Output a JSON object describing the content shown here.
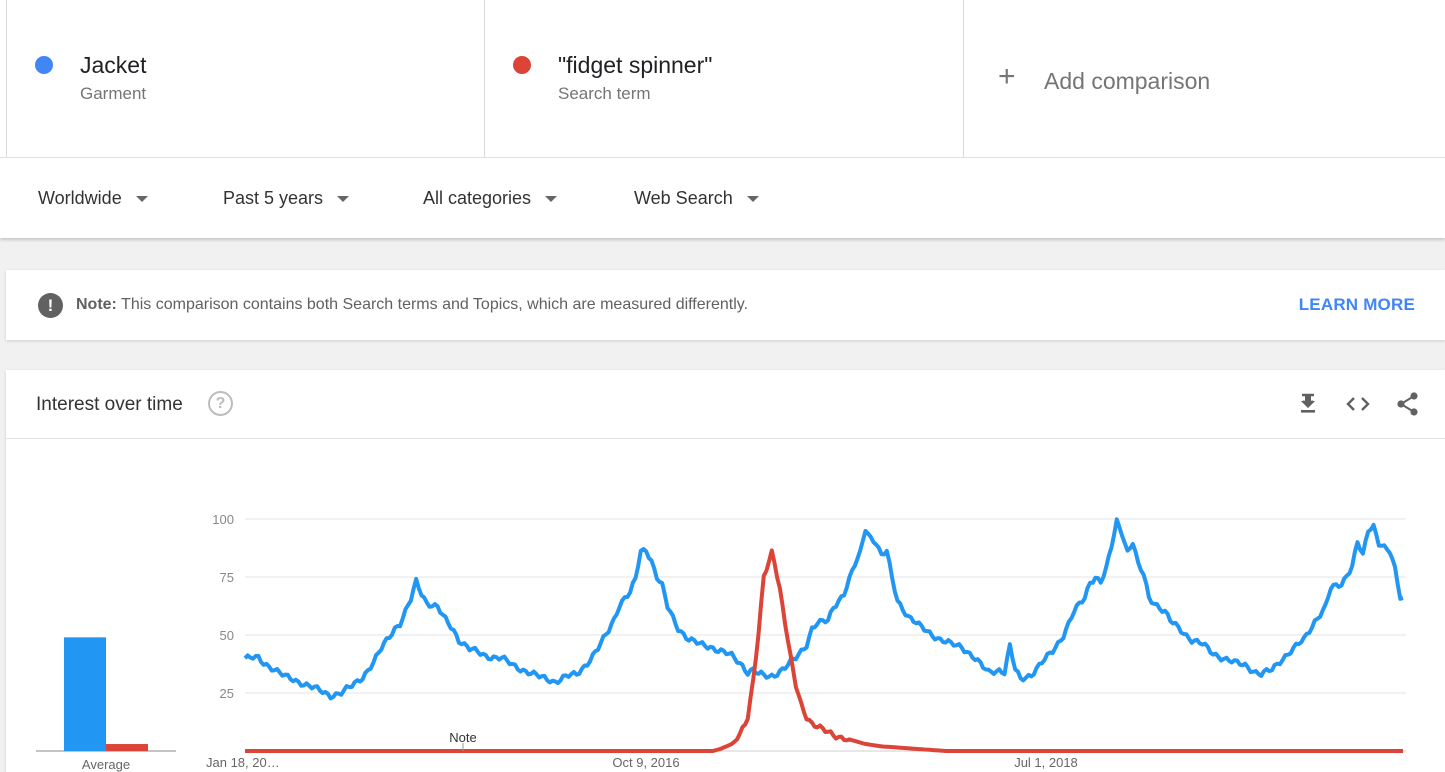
{
  "terms": [
    {
      "name": "Jacket",
      "type": "Garment",
      "color": "#4285f4"
    },
    {
      "name": "\"fidget spinner\"",
      "type": "Search term",
      "color": "#db4437"
    }
  ],
  "add_comparison": {
    "plus": "+",
    "label": "Add comparison"
  },
  "filters": {
    "region": "Worldwide",
    "time": "Past 5 years",
    "category": "All categories",
    "property": "Web Search"
  },
  "note": {
    "icon": "!",
    "label": "Note:",
    "text": "This comparison contains both Search terms and Topics, which are measured differently.",
    "learn_more": "LEARN MORE"
  },
  "interest": {
    "title": "Interest over time",
    "help_icon": "?",
    "icons": [
      "download-icon",
      "embed-icon",
      "share-icon"
    ]
  },
  "chart_data": {
    "type": "line",
    "ylim": [
      0,
      100
    ],
    "yticks": [
      25,
      50,
      75,
      100
    ],
    "grid": true,
    "xtick_labels": [
      "Jan 18, 20…",
      "Oct 9, 2016",
      "Jul 1, 2018"
    ],
    "annotation": "Note",
    "average_label": "Average",
    "series": [
      {
        "name": "Jacket",
        "color": "#2196f3",
        "average": 49,
        "anchors": [
          [
            0,
            40
          ],
          [
            5,
            40
          ],
          [
            7,
            38
          ],
          [
            10,
            36
          ],
          [
            15,
            32
          ],
          [
            20,
            30
          ],
          [
            28,
            26
          ],
          [
            32,
            24
          ],
          [
            36,
            25
          ],
          [
            40,
            28
          ],
          [
            44,
            32
          ],
          [
            48,
            38
          ],
          [
            52,
            46
          ],
          [
            56,
            53
          ],
          [
            58,
            55
          ],
          [
            62,
            65
          ],
          [
            64,
            73
          ],
          [
            66,
            68
          ],
          [
            68,
            64
          ],
          [
            72,
            62
          ],
          [
            74,
            58
          ],
          [
            78,
            52
          ],
          [
            80,
            48
          ],
          [
            84,
            44
          ],
          [
            90,
            41
          ],
          [
            96,
            40
          ],
          [
            100,
            37
          ],
          [
            104,
            35
          ],
          [
            110,
            32
          ],
          [
            116,
            30
          ],
          [
            120,
            32
          ],
          [
            124,
            33
          ],
          [
            128,
            38
          ],
          [
            132,
            44
          ],
          [
            136,
            52
          ],
          [
            138,
            57
          ],
          [
            140,
            63
          ],
          [
            142,
            66
          ],
          [
            144,
            68
          ],
          [
            146,
            74
          ],
          [
            148,
            86
          ],
          [
            150,
            87
          ],
          [
            152,
            82
          ],
          [
            154,
            75
          ],
          [
            156,
            71
          ],
          [
            158,
            62
          ],
          [
            162,
            53
          ],
          [
            166,
            48
          ],
          [
            170,
            46
          ],
          [
            174,
            45
          ],
          [
            178,
            43
          ],
          [
            182,
            41
          ],
          [
            186,
            37
          ],
          [
            188,
            34
          ],
          [
            190,
            35
          ],
          [
            192,
            33
          ],
          [
            196,
            32
          ],
          [
            198,
            33
          ],
          [
            202,
            36
          ],
          [
            206,
            40
          ],
          [
            210,
            46
          ],
          [
            212,
            53
          ],
          [
            214,
            55
          ],
          [
            218,
            56
          ],
          [
            220,
            62
          ],
          [
            224,
            68
          ],
          [
            228,
            80
          ],
          [
            230,
            85
          ],
          [
            232,
            96
          ],
          [
            234,
            92
          ],
          [
            236,
            90
          ],
          [
            238,
            84
          ],
          [
            240,
            86
          ],
          [
            242,
            74
          ],
          [
            244,
            65
          ],
          [
            248,
            58
          ],
          [
            252,
            54
          ],
          [
            256,
            51
          ],
          [
            260,
            48
          ],
          [
            264,
            46
          ],
          [
            268,
            45
          ],
          [
            272,
            41
          ],
          [
            276,
            36
          ],
          [
            278,
            34
          ],
          [
            282,
            35
          ],
          [
            284,
            34
          ],
          [
            286,
            45
          ],
          [
            288,
            35
          ],
          [
            290,
            31
          ],
          [
            294,
            33
          ],
          [
            298,
            38
          ],
          [
            302,
            43
          ],
          [
            306,
            50
          ],
          [
            308,
            55
          ],
          [
            310,
            60
          ],
          [
            314,
            66
          ],
          [
            316,
            73
          ],
          [
            318,
            75
          ],
          [
            320,
            73
          ],
          [
            322,
            78
          ],
          [
            324,
            88
          ],
          [
            326,
            99
          ],
          [
            328,
            94
          ],
          [
            330,
            86
          ],
          [
            332,
            90
          ],
          [
            334,
            80
          ],
          [
            336,
            76
          ],
          [
            338,
            66
          ],
          [
            340,
            64
          ],
          [
            344,
            60
          ],
          [
            346,
            56
          ],
          [
            350,
            52
          ],
          [
            354,
            48
          ],
          [
            358,
            46
          ],
          [
            362,
            42
          ],
          [
            366,
            40
          ],
          [
            370,
            38
          ],
          [
            374,
            37
          ],
          [
            378,
            34
          ],
          [
            380,
            33
          ],
          [
            384,
            35
          ],
          [
            388,
            40
          ],
          [
            392,
            44
          ],
          [
            396,
            48
          ],
          [
            400,
            56
          ],
          [
            404,
            62
          ],
          [
            406,
            70
          ],
          [
            410,
            72
          ],
          [
            414,
            80
          ],
          [
            416,
            90
          ],
          [
            418,
            84
          ],
          [
            420,
            95
          ],
          [
            422,
            97
          ],
          [
            424,
            90
          ],
          [
            426,
            88
          ],
          [
            428,
            86
          ],
          [
            430,
            78
          ],
          [
            432,
            66
          ],
          [
            433,
            66
          ]
        ]
      },
      {
        "name": "\"fidget spinner\"",
        "color": "#db4437",
        "average": 3,
        "anchors": [
          [
            0,
            0
          ],
          [
            175,
            0
          ],
          [
            178,
            1
          ],
          [
            180,
            2
          ],
          [
            182,
            3
          ],
          [
            184,
            5
          ],
          [
            186,
            10
          ],
          [
            188,
            15
          ],
          [
            190,
            30
          ],
          [
            192,
            50
          ],
          [
            194,
            75
          ],
          [
            196,
            82
          ],
          [
            197,
            86
          ],
          [
            198,
            82
          ],
          [
            200,
            70
          ],
          [
            202,
            55
          ],
          [
            204,
            40
          ],
          [
            206,
            28
          ],
          [
            208,
            20
          ],
          [
            210,
            15
          ],
          [
            212,
            12
          ],
          [
            216,
            9
          ],
          [
            220,
            7
          ],
          [
            226,
            5
          ],
          [
            232,
            3
          ],
          [
            238,
            2
          ],
          [
            250,
            1
          ],
          [
            262,
            0
          ],
          [
            433,
            0
          ]
        ]
      }
    ]
  }
}
